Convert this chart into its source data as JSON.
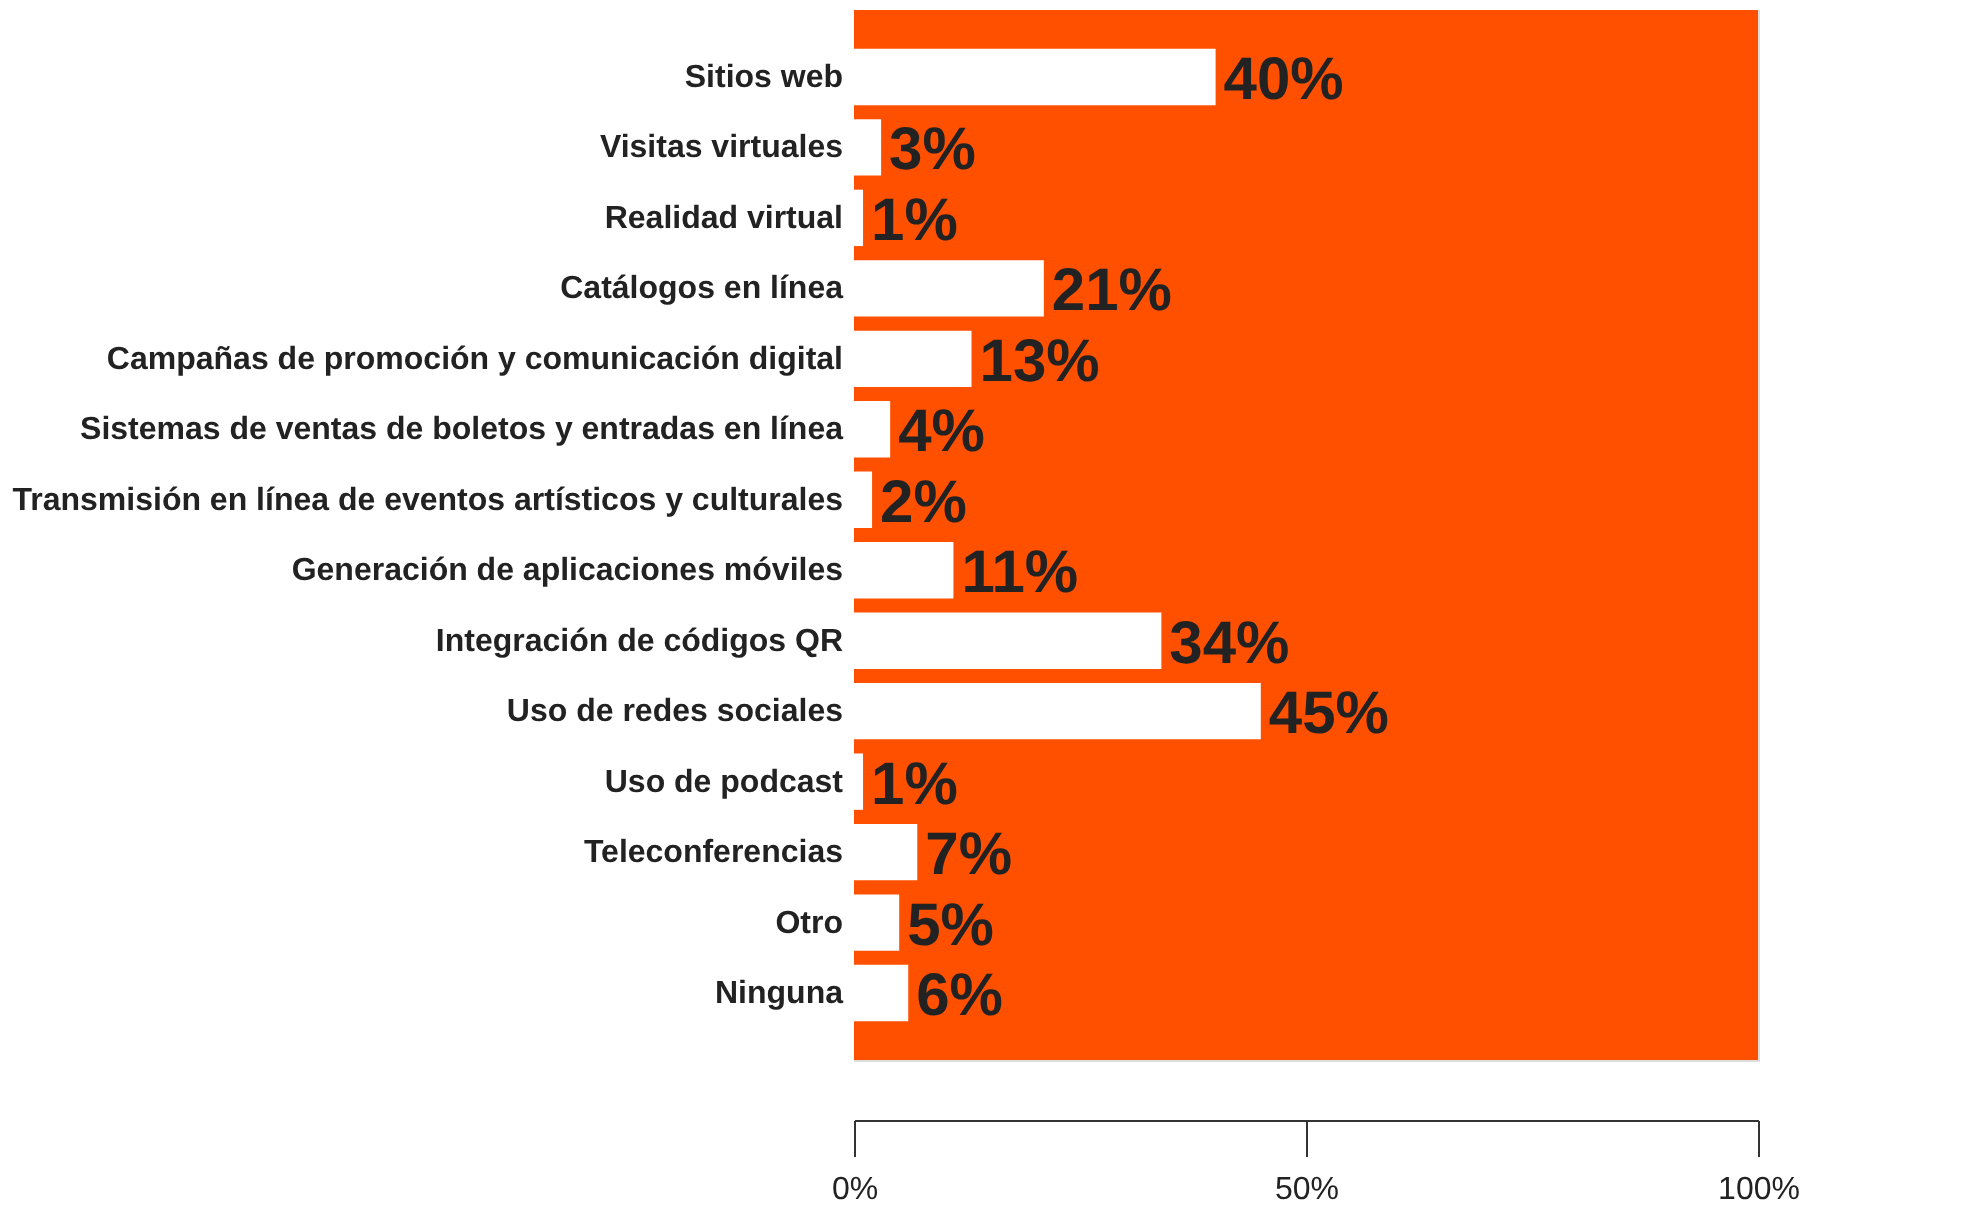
{
  "chart_data": {
    "type": "bar",
    "orientation": "horizontal",
    "categories": [
      "Sitios web",
      "Visitas virtuales",
      "Realidad virtual",
      "Catálogos en línea",
      "Campañas de promoción y comunicación digital",
      "Sistemas de ventas de boletos y entradas en línea",
      "Transmisión en línea de eventos artísticos y culturales",
      "Generación de aplicaciones móviles",
      "Integración de códigos QR",
      "Uso de redes sociales",
      "Uso de podcast",
      "Teleconferencias",
      "Otro",
      "Ninguna"
    ],
    "values": [
      40,
      3,
      1,
      21,
      13,
      4,
      2,
      11,
      34,
      45,
      1,
      7,
      5,
      6
    ],
    "color": "#ffffff",
    "value_labels": [
      "40%",
      "3%",
      "1%",
      "21%",
      "13%",
      "4%",
      "2%",
      "11%",
      "34%",
      "45%",
      "1%",
      "7%",
      "5%",
      "6%"
    ],
    "xlim": [
      0,
      100
    ],
    "xticks": [
      {
        "value": 0,
        "label": "0%"
      },
      {
        "value": 50,
        "label": "50%"
      },
      {
        "value": 100,
        "label": "100%"
      }
    ],
    "bands": [
      {
        "axis": "x",
        "from": 0,
        "to": 100,
        "color": "#ff5000"
      }
    ]
  }
}
